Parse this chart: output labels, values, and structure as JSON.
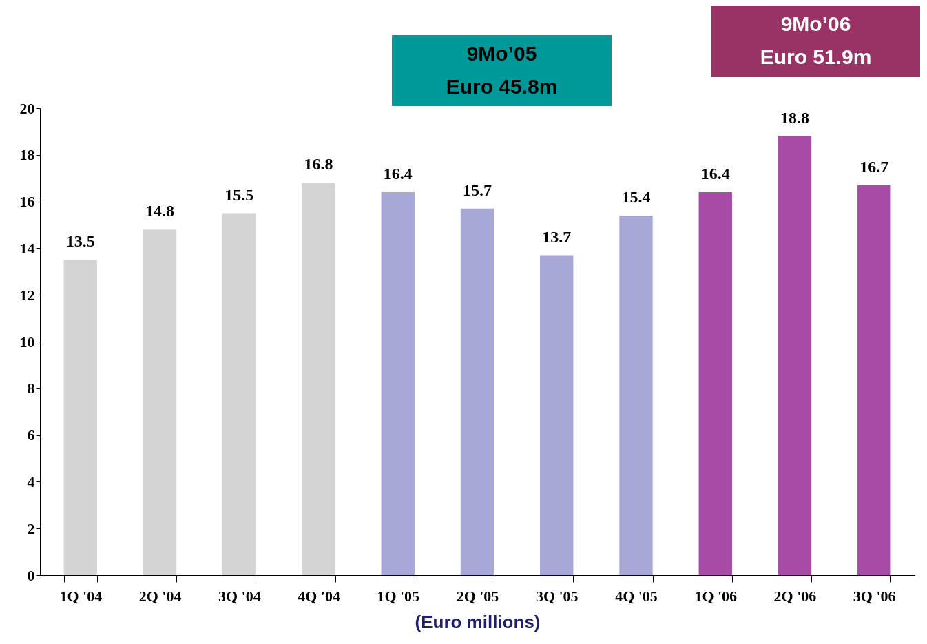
{
  "chart_data": {
    "type": "bar",
    "categories": [
      "1Q '04",
      "2Q '04",
      "3Q '04",
      "4Q '04",
      "1Q '05",
      "2Q '05",
      "3Q '05",
      "4Q '05",
      "1Q '06",
      "2Q '06",
      "3Q '06"
    ],
    "values": [
      13.5,
      14.8,
      15.5,
      16.8,
      16.4,
      15.7,
      13.7,
      15.4,
      16.4,
      18.8,
      16.7
    ],
    "colors": [
      "#d4d4d4",
      "#d4d4d4",
      "#d4d4d4",
      "#d4d4d4",
      "#a8a8d8",
      "#a8a8d8",
      "#a8a8d8",
      "#a8a8d8",
      "#a64ca6",
      "#a64ca6",
      "#a64ca6"
    ],
    "xlabel": "(Euro millions)",
    "ylim": [
      0,
      20
    ],
    "yticks": [
      0,
      2,
      4,
      6,
      8,
      10,
      12,
      14,
      16,
      18,
      20
    ],
    "data_labels": true,
    "grid": false,
    "legend": false,
    "annotations": [
      "9Mo’05\nEuro 45.8m",
      "9Mo’06\nEuro 51.9m"
    ]
  }
}
